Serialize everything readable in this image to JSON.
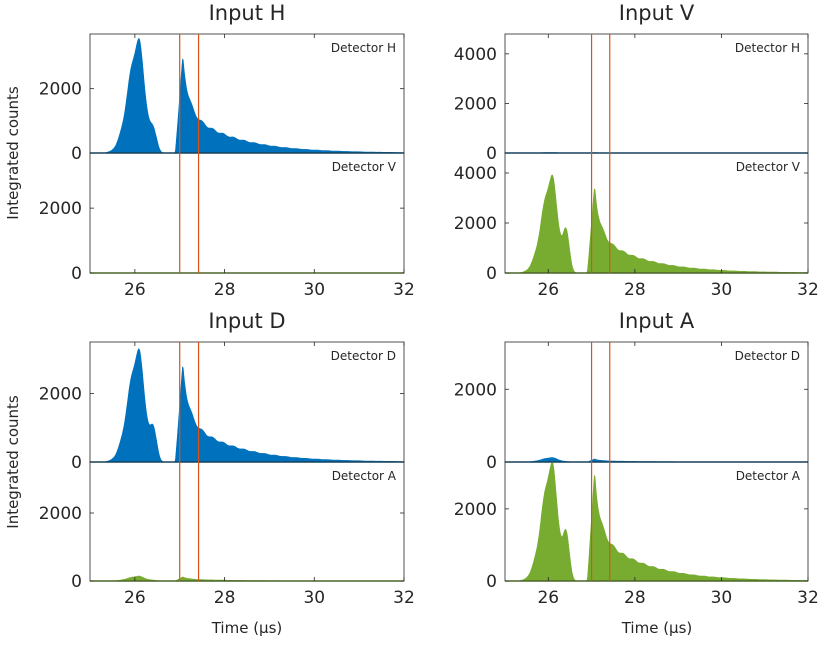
{
  "chart_data": {
    "type": "area",
    "description_fields": false,
    "shared_xlabel": "Time (μs)",
    "shared_ylabel": "Integrated counts",
    "xlim": [
      25.0,
      32.0
    ],
    "xticks": [
      26,
      28,
      30,
      32
    ],
    "vertical_lines_x": [
      27.0,
      27.42
    ],
    "colors": {
      "blue": "#0072BD",
      "green": "#77AC30",
      "vline": "#D95319",
      "axis": "#262626"
    },
    "grid": false,
    "panels": [
      {
        "title": "Input H",
        "subplots": [
          {
            "label": "Detector H",
            "color": "blue",
            "ylim": [
              0,
              3700
            ],
            "yticks": [
              0,
              2000
            ],
            "peak1": 3450,
            "peak2": 2950,
            "shoulder": 650,
            "tail": 1300
          },
          {
            "label": "Detector V",
            "color": "green",
            "ylim": [
              0,
              3700
            ],
            "yticks": [
              0,
              2000
            ],
            "peak1": 0,
            "peak2": 0,
            "shoulder": 0,
            "tail": 0
          }
        ]
      },
      {
        "title": "Input V",
        "subplots": [
          {
            "label": "Detector H",
            "color": "blue",
            "ylim": [
              0,
              4800
            ],
            "yticks": [
              0,
              2000,
              4000
            ],
            "peak1": 20,
            "peak2": 15,
            "shoulder": 5,
            "tail": 5
          },
          {
            "label": "Detector V",
            "color": "green",
            "ylim": [
              0,
              4800
            ],
            "yticks": [
              0,
              2000,
              4000
            ],
            "peak1": 3800,
            "peak2": 3400,
            "shoulder": 1600,
            "tail": 1550
          }
        ]
      },
      {
        "title": "Input D",
        "subplots": [
          {
            "label": "Detector D",
            "color": "blue",
            "ylim": [
              0,
              3500
            ],
            "yticks": [
              0,
              2000
            ],
            "peak1": 3200,
            "peak2": 2800,
            "shoulder": 900,
            "tail": 1250
          },
          {
            "label": "Detector A",
            "color": "green",
            "ylim": [
              0,
              3500
            ],
            "yticks": [
              0,
              2000
            ],
            "peak1": 140,
            "peak2": 120,
            "shoulder": 20,
            "tail": 40
          }
        ]
      },
      {
        "title": "Input A",
        "subplots": [
          {
            "label": "Detector D",
            "color": "blue",
            "ylim": [
              0,
              3300
            ],
            "yticks": [
              0,
              2000
            ],
            "peak1": 120,
            "peak2": 80,
            "shoulder": 10,
            "tail": 30
          },
          {
            "label": "Detector A",
            "color": "green",
            "ylim": [
              0,
              3300
            ],
            "yticks": [
              0,
              2000
            ],
            "peak1": 3200,
            "peak2": 2950,
            "shoulder": 1250,
            "tail": 1350
          }
        ]
      }
    ]
  }
}
